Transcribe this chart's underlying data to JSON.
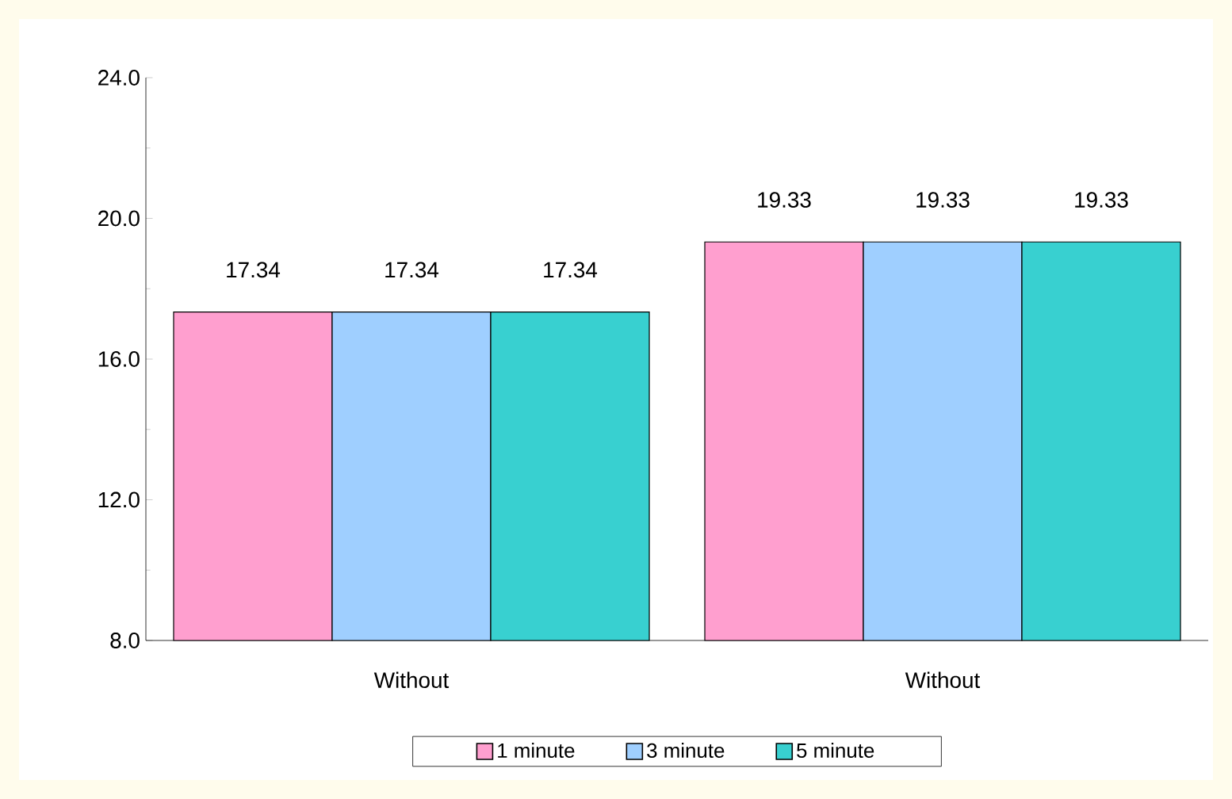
{
  "chart_data": {
    "type": "bar",
    "categories": [
      "Without",
      "Without"
    ],
    "series": [
      {
        "name": "1 minute",
        "color": "#ff9fcf",
        "values": [
          17.34,
          19.33
        ]
      },
      {
        "name": "3 minute",
        "color": "#9fcfff",
        "values": [
          17.34,
          19.33
        ]
      },
      {
        "name": "5 minute",
        "color": "#38d0d0",
        "values": [
          17.34,
          19.33
        ]
      }
    ],
    "ylim": [
      8,
      24
    ],
    "yticks": [
      {
        "value": 8,
        "label": "8.0"
      },
      {
        "value": 12,
        "label": "12.0"
      },
      {
        "value": 16,
        "label": "16.0"
      },
      {
        "value": 20,
        "label": "20.0"
      },
      {
        "value": 24,
        "label": "24.0"
      }
    ],
    "data_labels": true,
    "legend": "bottom",
    "grid": false
  }
}
